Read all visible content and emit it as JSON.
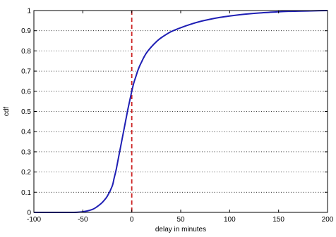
{
  "chart_data": {
    "type": "line",
    "title": "",
    "xlabel": "delay in minutes",
    "ylabel": "cdf",
    "xlim": [
      -100,
      200
    ],
    "ylim": [
      0,
      1
    ],
    "x_ticks": [
      -100,
      -50,
      0,
      50,
      100,
      150,
      200
    ],
    "x_tick_labels": [
      "-100",
      "-50",
      "0",
      "50",
      "100",
      "150",
      "200"
    ],
    "y_ticks": [
      0,
      0.1,
      0.2,
      0.3,
      0.4,
      0.5,
      0.6,
      0.7,
      0.8,
      0.9,
      1
    ],
    "y_tick_labels": [
      "0",
      "0.1",
      "0.2",
      "0.3",
      "0.4",
      "0.5",
      "0.6",
      "0.7",
      "0.8",
      "0.9",
      "1"
    ],
    "grid": "horizontal dotted",
    "series": [
      {
        "color": "#1f1fb4",
        "x": [
          -100,
          -80,
          -60,
          -50,
          -40,
          -35,
          -30,
          -25,
          -20,
          -18,
          -16,
          -14,
          -12,
          -10,
          -8,
          -6,
          -4,
          -2,
          0,
          2,
          4,
          6,
          8,
          10,
          12,
          15,
          20,
          25,
          30,
          40,
          50,
          60,
          70,
          80,
          90,
          100,
          110,
          120,
          130,
          140,
          150,
          160,
          170,
          180,
          190,
          200
        ],
        "y": [
          0,
          0,
          0,
          0.003,
          0.015,
          0.03,
          0.05,
          0.08,
          0.13,
          0.17,
          0.21,
          0.26,
          0.31,
          0.36,
          0.41,
          0.46,
          0.51,
          0.555,
          0.6,
          0.64,
          0.67,
          0.7,
          0.725,
          0.745,
          0.765,
          0.79,
          0.82,
          0.845,
          0.865,
          0.895,
          0.915,
          0.932,
          0.946,
          0.957,
          0.966,
          0.973,
          0.979,
          0.984,
          0.988,
          0.991,
          0.994,
          0.996,
          0.997,
          0.998,
          0.999,
          1.0
        ]
      }
    ],
    "reference_line": {
      "x": 0,
      "color": "#cc2222",
      "style": "dashed"
    },
    "colors": {
      "axis": "#000000",
      "grid": "#000000",
      "background": "#ffffff"
    }
  }
}
